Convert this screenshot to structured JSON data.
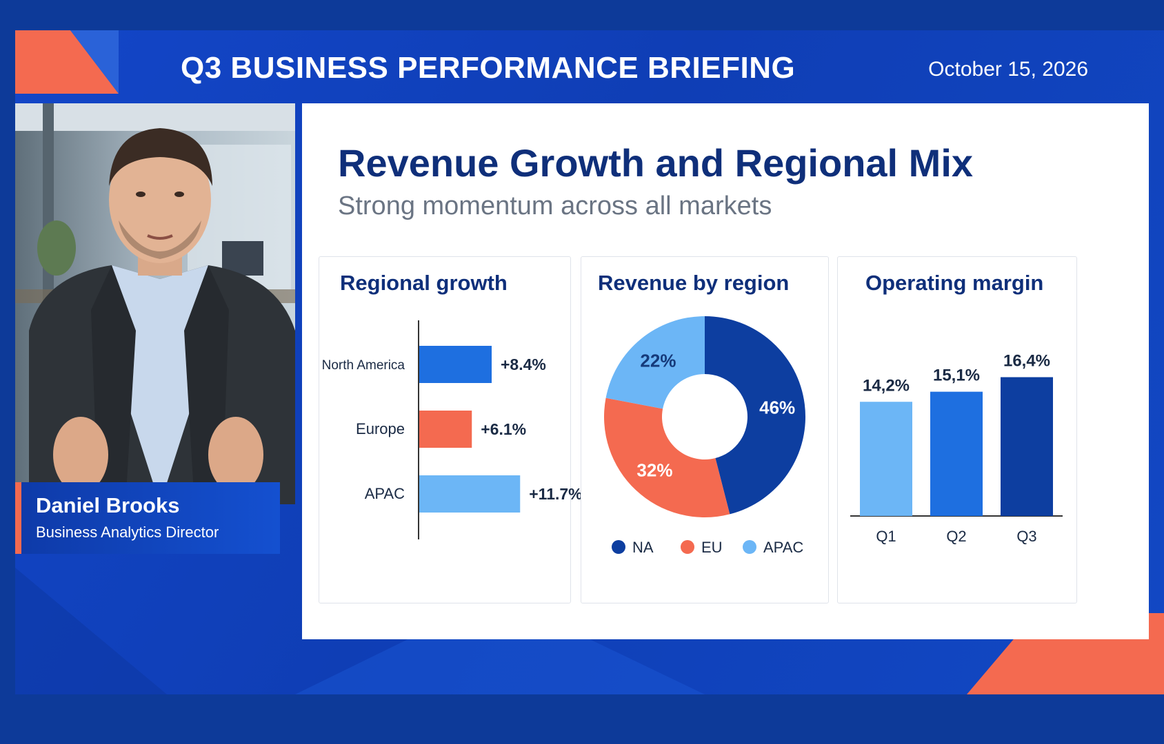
{
  "header": {
    "title": "Q3 BUSINESS PERFORMANCE BRIEFING",
    "date": "October 15, 2026"
  },
  "presenter": {
    "name": "Daniel Brooks",
    "role": "Business Analytics Director"
  },
  "slide": {
    "title": "Revenue Growth and Regional Mix",
    "subtitle": "Strong momentum across all markets"
  },
  "colors": {
    "dark_blue": "#0d3ea0",
    "blue": "#1e6fe0",
    "light_blue": "#6cb6f6",
    "coral": "#f46a50",
    "navy_text": "#0f2f7a"
  },
  "chart_data": [
    {
      "type": "bar",
      "orientation": "horizontal",
      "title": "Regional growth",
      "categories": [
        "North America",
        "Europe",
        "APAC"
      ],
      "values": [
        8.4,
        6.1,
        11.7
      ],
      "labels": [
        "+8.4%",
        "+6.1%",
        "+11.7%"
      ],
      "colors": [
        "#1e6fe0",
        "#f46a50",
        "#6cb6f6"
      ]
    },
    {
      "type": "pie",
      "style": "donut",
      "title": "Revenue by region",
      "categories": [
        "NA",
        "EU",
        "APAC"
      ],
      "values": [
        46,
        32,
        22
      ],
      "labels": [
        "46%",
        "32%",
        "22%"
      ],
      "colors": [
        "#0d3ea0",
        "#f46a50",
        "#6cb6f6"
      ],
      "legend": "bottom"
    },
    {
      "type": "bar",
      "title": "Operating margin",
      "categories": [
        "Q1",
        "Q2",
        "Q3"
      ],
      "values": [
        14.2,
        15.1,
        16.4
      ],
      "labels": [
        "14,2%",
        "15,1%",
        "16,4%"
      ],
      "colors": [
        "#6cb6f6",
        "#1e6fe0",
        "#0d3ea0"
      ]
    }
  ]
}
